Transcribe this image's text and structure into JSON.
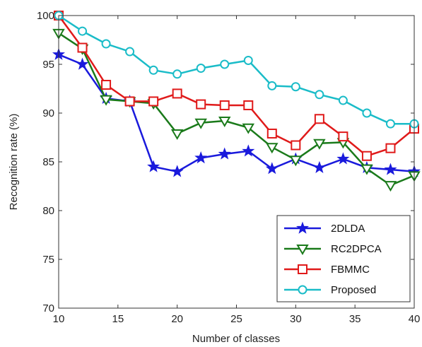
{
  "chart_data": {
    "type": "line",
    "title": "",
    "xlabel": "Number of classes",
    "ylabel": "Recognition rate (%)",
    "xlim": [
      10,
      40
    ],
    "ylim": [
      70,
      100
    ],
    "xticks": [
      10,
      15,
      20,
      25,
      30,
      35,
      40
    ],
    "yticks": [
      70,
      75,
      80,
      85,
      90,
      95,
      100
    ],
    "grid": false,
    "legend_position": "bottom-right",
    "x": [
      10,
      12,
      14,
      16,
      18,
      20,
      22,
      24,
      26,
      28,
      30,
      32,
      34,
      36,
      38,
      40
    ],
    "series": [
      {
        "name": "2DLDA",
        "color": "#1a1adc",
        "marker": "star",
        "values": [
          96.0,
          95.0,
          91.5,
          91.2,
          84.5,
          84.0,
          85.4,
          85.8,
          86.1,
          84.3,
          85.3,
          84.4,
          85.3,
          84.4,
          84.2,
          84.0
        ]
      },
      {
        "name": "RC2DPCA",
        "color": "#1a7a1a",
        "marker": "triangle-down",
        "values": [
          98.2,
          96.6,
          91.4,
          91.2,
          91.0,
          87.9,
          89.0,
          89.2,
          88.5,
          86.5,
          85.2,
          86.9,
          87.0,
          84.3,
          82.6,
          83.6
        ]
      },
      {
        "name": "FBMMC",
        "color": "#e01a1a",
        "marker": "square",
        "values": [
          100.0,
          96.7,
          92.9,
          91.2,
          91.2,
          92.0,
          90.9,
          90.8,
          90.8,
          87.9,
          86.7,
          89.4,
          87.6,
          85.6,
          86.4,
          88.4
        ]
      },
      {
        "name": "Proposed",
        "color": "#1abcc8",
        "marker": "circle",
        "values": [
          100.0,
          98.4,
          97.1,
          96.3,
          94.4,
          94.0,
          94.6,
          95.0,
          95.4,
          92.8,
          92.7,
          91.9,
          91.3,
          90.0,
          88.9,
          88.9
        ]
      }
    ]
  }
}
